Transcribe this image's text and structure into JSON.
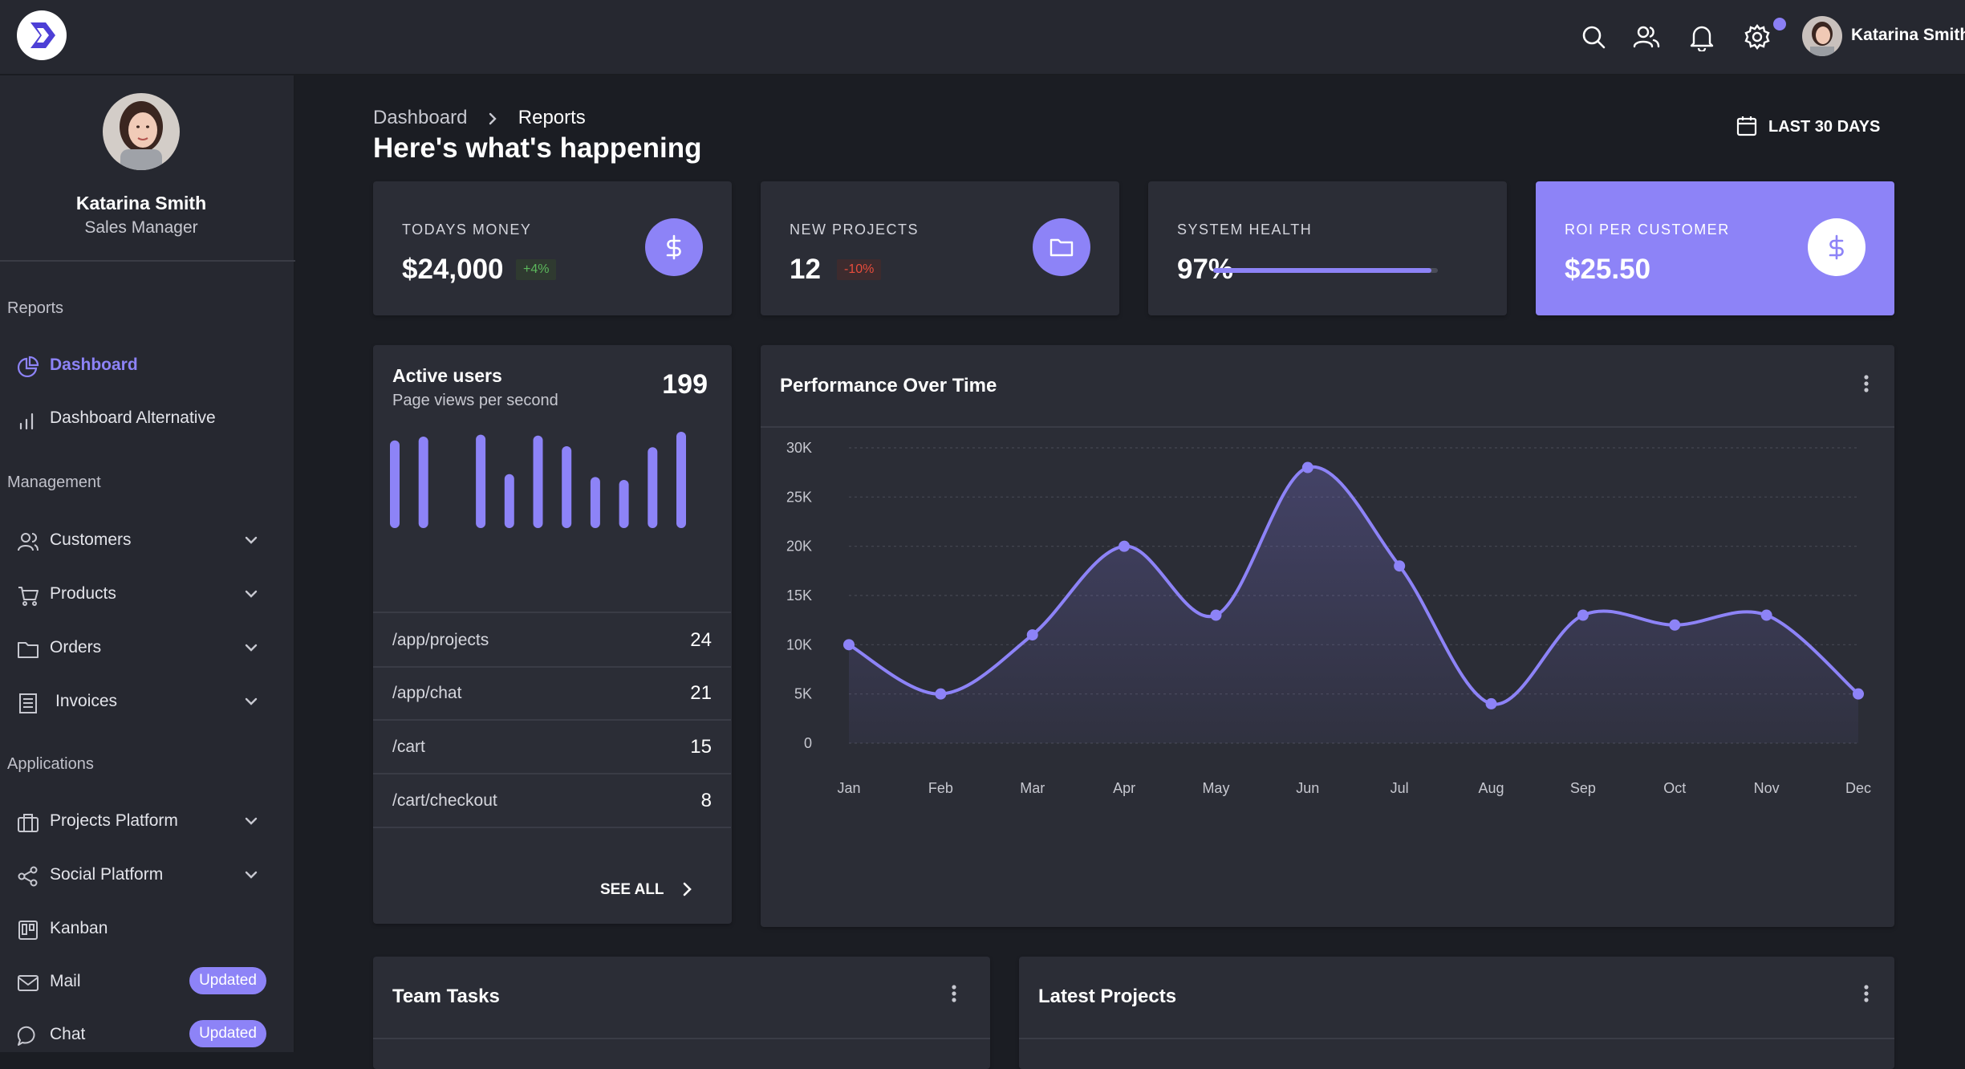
{
  "header": {
    "user_name": "Katarina Smith",
    "icons": [
      "search-icon",
      "users-icon",
      "bell-icon",
      "settings-icon"
    ],
    "accent_color": "#8d83f7"
  },
  "sidebar": {
    "profile": {
      "name": "Katarina Smith",
      "role": "Sales Manager"
    },
    "sections": {
      "reports": "Reports",
      "management": "Management",
      "applications": "Applications"
    },
    "items": {
      "dashboard": "Dashboard",
      "dashboard_alt": "Dashboard Alternative",
      "customers": "Customers",
      "products": "Products",
      "orders": "Orders",
      "invoices": "Invoices",
      "projects_platform": "Projects Platform",
      "social_platform": "Social Platform",
      "kanban": "Kanban",
      "mail": "Mail",
      "chat": "Chat"
    },
    "badges": {
      "mail": "Updated",
      "chat": "Updated"
    }
  },
  "page": {
    "breadcrumb": [
      "Dashboard",
      "Reports"
    ],
    "title": "Here's what's happening",
    "date_range": "LAST 30 DAYS"
  },
  "stats": {
    "money": {
      "label": "TODAYS MONEY",
      "value": "$24,000",
      "change": "+4%"
    },
    "projects": {
      "label": "NEW PROJECTS",
      "value": "12",
      "change": "-10%"
    },
    "health": {
      "label": "SYSTEM HEALTH",
      "value": "97%",
      "progress": 0.97
    },
    "roi": {
      "label": "ROI PER CUSTOMER",
      "value": "$25.50"
    }
  },
  "active_users": {
    "title": "Active users",
    "subtitle": "Page views per second",
    "count": "199",
    "bars": [
      0.91,
      0.95,
      0,
      0.97,
      0.56,
      0.96,
      0.85,
      0.53,
      0.5,
      0.84,
      1.0
    ],
    "pages": [
      {
        "path": "/app/projects",
        "value": "24"
      },
      {
        "path": "/app/chat",
        "value": "21"
      },
      {
        "path": "/cart",
        "value": "15"
      },
      {
        "path": "/cart/checkout",
        "value": "8"
      }
    ],
    "see_all": "SEE ALL"
  },
  "performance": {
    "title": "Performance Over Time"
  },
  "chart_data": {
    "type": "area",
    "title": "Performance Over Time",
    "categories": [
      "Jan",
      "Feb",
      "Mar",
      "Apr",
      "May",
      "Jun",
      "Jul",
      "Aug",
      "Sep",
      "Oct",
      "Nov",
      "Dec"
    ],
    "values": [
      10000,
      5000,
      11000,
      20000,
      13000,
      28000,
      18000,
      4000,
      13000,
      12000,
      13000,
      5000
    ],
    "y_ticks": [
      "0",
      "5K",
      "10K",
      "15K",
      "20K",
      "25K",
      "30K"
    ],
    "ylim": [
      0,
      30000
    ],
    "grid": true,
    "color": "#8d83f7"
  },
  "panels": {
    "team_tasks": "Team Tasks",
    "latest_projects": "Latest Projects"
  }
}
